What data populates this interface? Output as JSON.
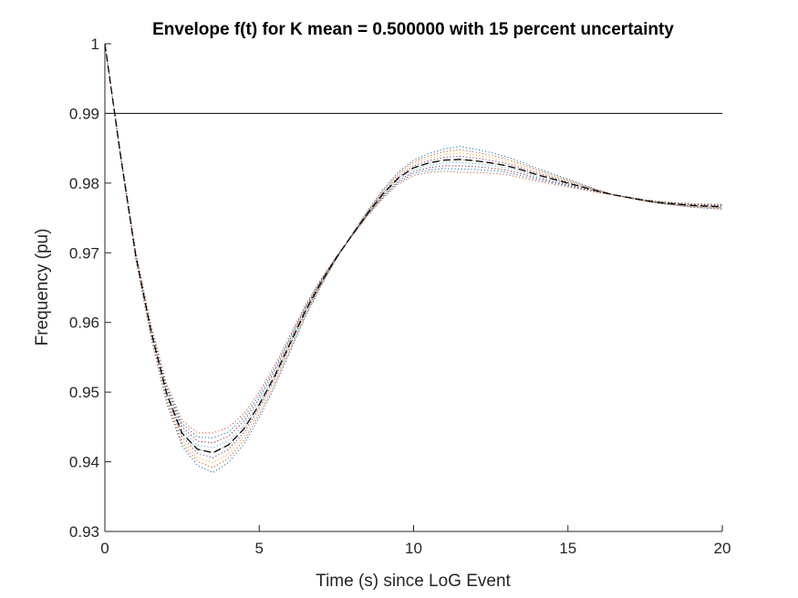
{
  "chart_data": {
    "type": "line",
    "title": "Envelope f(t) for K mean = 0.500000 with 15 percent uncertainty",
    "xlabel": "Time (s) since LoG Event",
    "ylabel": "Frequency (pu)",
    "xlim": [
      0,
      20
    ],
    "ylim": [
      0.93,
      1.0
    ],
    "xticks": [
      "0",
      "5",
      "10",
      "15",
      "20"
    ],
    "yticks": [
      "0.93",
      "0.94",
      "0.95",
      "0.96",
      "0.97",
      "0.98",
      "0.99",
      "1"
    ],
    "grid": false,
    "threshold_line": {
      "y": 0.99,
      "color": "#000000"
    },
    "mean_response": {
      "style": "black dashed",
      "color": "#000000",
      "x": [
        0,
        0.5,
        1,
        1.5,
        2,
        2.5,
        3,
        3.5,
        4,
        4.5,
        5,
        5.5,
        6,
        6.5,
        7,
        7.5,
        8,
        8.5,
        9,
        9.5,
        10,
        10.5,
        11,
        11.5,
        12,
        12.5,
        13,
        13.5,
        14,
        14.5,
        15,
        15.5,
        16,
        16.5,
        17,
        17.5,
        18,
        18.5,
        19,
        19.5,
        20
      ],
      "y": [
        1.0,
        0.9842,
        0.9696,
        0.9586,
        0.9498,
        0.9441,
        0.9418,
        0.9413,
        0.9424,
        0.9447,
        0.9482,
        0.9523,
        0.957,
        0.9617,
        0.9657,
        0.9693,
        0.9725,
        0.9756,
        0.9784,
        0.9807,
        0.9822,
        0.9829,
        0.9833,
        0.9834,
        0.9832,
        0.9829,
        0.9825,
        0.9819,
        0.9812,
        0.9806,
        0.98,
        0.9794,
        0.9788,
        0.9783,
        0.9779,
        0.9775,
        0.9772,
        0.977,
        0.9768,
        0.9767,
        0.9766
      ]
    },
    "envelope": {
      "style": "dotted",
      "trace_count": 9,
      "colors": [
        "#0072BD",
        "#D95319",
        "#EDB120",
        "#7E2F8E",
        "#77AC30",
        "#4DBEEE",
        "#A2142F",
        "#0072BD",
        "#D95319"
      ],
      "nadir_range": [
        0.9393,
        0.945
      ],
      "peak_range": [
        0.9808,
        0.9845
      ],
      "final_range": [
        0.9763,
        0.977
      ]
    }
  }
}
